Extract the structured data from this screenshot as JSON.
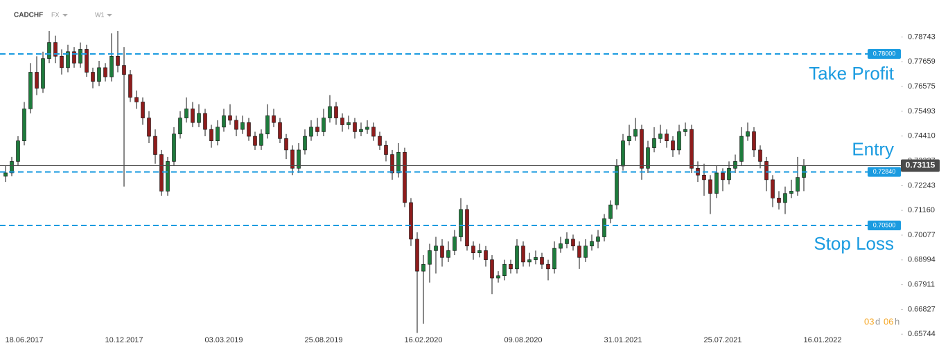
{
  "chart_data": {
    "type": "candlestick",
    "symbol": "CADCHF",
    "market": "FX",
    "timeframe": "W1",
    "up_color": "#1e7b3c",
    "down_color": "#8e1c1c",
    "ylim": [
      0.6554,
      0.8036
    ],
    "yticks": [
      0.78743,
      0.77659,
      0.76575,
      0.75493,
      {
        "value": 0.7441,
        "label": "0.74410"
      },
      0.73327,
      0.72243,
      {
        "value": 0.7116,
        "label": "0.71160"
      },
      0.70077,
      0.68994,
      0.67911,
      0.66827,
      0.65744
    ],
    "categories": [
      null,
      null,
      null,
      "18.06.2017",
      null,
      null,
      null,
      null,
      null,
      null,
      null,
      null,
      null,
      null,
      null,
      null,
      null,
      null,
      null,
      "10.12.2017",
      null,
      null,
      null,
      null,
      null,
      null,
      null,
      null,
      null,
      null,
      null,
      null,
      null,
      null,
      null,
      "03.03.2019",
      null,
      null,
      null,
      null,
      null,
      null,
      null,
      null,
      null,
      null,
      null,
      null,
      null,
      null,
      null,
      "25.08.2019",
      null,
      null,
      null,
      null,
      null,
      null,
      null,
      null,
      null,
      null,
      null,
      null,
      null,
      null,
      null,
      "16.02.2020",
      null,
      null,
      null,
      null,
      null,
      null,
      null,
      null,
      null,
      null,
      null,
      null,
      null,
      null,
      null,
      "09.08.2020",
      null,
      null,
      null,
      null,
      null,
      null,
      null,
      null,
      null,
      null,
      null,
      null,
      null,
      null,
      null,
      "31.01.2021",
      null,
      null,
      null,
      null,
      null,
      null,
      null,
      null,
      null,
      null,
      null,
      null,
      null,
      null,
      null,
      "25.07.2021",
      null,
      null,
      null,
      null,
      null,
      null,
      null,
      null,
      null,
      null,
      null,
      null,
      null,
      null,
      null,
      "16.01.2022"
    ],
    "ohlc": [
      [
        0.7265,
        0.731,
        0.724,
        0.728
      ],
      [
        0.728,
        0.735,
        0.7265,
        0.733
      ],
      [
        0.733,
        0.744,
        0.731,
        0.742
      ],
      [
        0.742,
        0.759,
        0.74,
        0.756
      ],
      [
        0.756,
        0.776,
        0.754,
        0.772
      ],
      [
        0.772,
        0.779,
        0.762,
        0.765
      ],
      [
        0.765,
        0.781,
        0.763,
        0.778
      ],
      [
        0.778,
        0.79,
        0.776,
        0.785
      ],
      [
        0.785,
        0.788,
        0.776,
        0.779
      ],
      [
        0.779,
        0.782,
        0.771,
        0.774
      ],
      [
        0.774,
        0.784,
        0.772,
        0.781
      ],
      [
        0.781,
        0.783,
        0.774,
        0.776
      ],
      [
        0.776,
        0.785,
        0.774,
        0.782
      ],
      [
        0.782,
        0.784,
        0.77,
        0.772
      ],
      [
        0.772,
        0.774,
        0.765,
        0.768
      ],
      [
        0.768,
        0.777,
        0.766,
        0.774
      ],
      [
        0.774,
        0.776,
        0.768,
        0.77
      ],
      [
        0.77,
        0.789,
        0.768,
        0.779
      ],
      [
        0.779,
        0.79,
        0.772,
        0.775
      ],
      [
        0.775,
        0.783,
        0.722,
        0.771
      ],
      [
        0.771,
        0.773,
        0.759,
        0.761
      ],
      [
        0.761,
        0.764,
        0.756,
        0.759
      ],
      [
        0.759,
        0.761,
        0.749,
        0.752
      ],
      [
        0.752,
        0.755,
        0.741,
        0.744
      ],
      [
        0.744,
        0.747,
        0.732,
        0.736
      ],
      [
        0.736,
        0.738,
        0.718,
        0.72
      ],
      [
        0.72,
        0.735,
        0.718,
        0.733
      ],
      [
        0.733,
        0.748,
        0.731,
        0.745
      ],
      [
        0.745,
        0.755,
        0.743,
        0.752
      ],
      [
        0.752,
        0.761,
        0.75,
        0.756
      ],
      [
        0.756,
        0.759,
        0.748,
        0.75
      ],
      [
        0.75,
        0.758,
        0.748,
        0.754
      ],
      [
        0.754,
        0.756,
        0.744,
        0.747
      ],
      [
        0.747,
        0.749,
        0.739,
        0.742
      ],
      [
        0.742,
        0.751,
        0.74,
        0.748
      ],
      [
        0.748,
        0.756,
        0.746,
        0.753
      ],
      [
        0.753,
        0.758,
        0.749,
        0.751
      ],
      [
        0.751,
        0.753,
        0.744,
        0.747
      ],
      [
        0.747,
        0.753,
        0.745,
        0.75
      ],
      [
        0.75,
        0.752,
        0.742,
        0.744
      ],
      [
        0.744,
        0.746,
        0.738,
        0.74
      ],
      [
        0.74,
        0.747,
        0.738,
        0.745
      ],
      [
        0.745,
        0.758,
        0.743,
        0.753
      ],
      [
        0.753,
        0.756,
        0.748,
        0.75
      ],
      [
        0.75,
        0.752,
        0.741,
        0.743
      ],
      [
        0.743,
        0.745,
        0.734,
        0.738
      ],
      [
        0.738,
        0.74,
        0.727,
        0.73
      ],
      [
        0.73,
        0.741,
        0.728,
        0.738
      ],
      [
        0.738,
        0.747,
        0.736,
        0.744
      ],
      [
        0.744,
        0.751,
        0.742,
        0.748
      ],
      [
        0.748,
        0.752,
        0.744,
        0.746
      ],
      [
        0.746,
        0.756,
        0.744,
        0.752
      ],
      [
        0.752,
        0.762,
        0.75,
        0.757
      ],
      [
        0.757,
        0.759,
        0.749,
        0.752
      ],
      [
        0.752,
        0.754,
        0.746,
        0.749
      ],
      [
        0.749,
        0.753,
        0.747,
        0.75
      ],
      [
        0.75,
        0.752,
        0.743,
        0.746
      ],
      [
        0.746,
        0.75,
        0.744,
        0.747
      ],
      [
        0.747,
        0.751,
        0.745,
        0.748
      ],
      [
        0.748,
        0.75,
        0.742,
        0.744
      ],
      [
        0.744,
        0.746,
        0.738,
        0.74
      ],
      [
        0.74,
        0.742,
        0.733,
        0.736
      ],
      [
        0.736,
        0.738,
        0.725,
        0.728
      ],
      [
        0.728,
        0.741,
        0.726,
        0.737
      ],
      [
        0.737,
        0.739,
        0.713,
        0.715
      ],
      [
        0.715,
        0.717,
        0.696,
        0.699
      ],
      [
        0.699,
        0.702,
        0.658,
        0.685
      ],
      [
        0.685,
        0.692,
        0.662,
        0.688
      ],
      [
        0.688,
        0.697,
        0.68,
        0.694
      ],
      [
        0.694,
        0.7,
        0.684,
        0.696
      ],
      [
        0.696,
        0.699,
        0.687,
        0.691
      ],
      [
        0.691,
        0.698,
        0.689,
        0.694
      ],
      [
        0.694,
        0.703,
        0.692,
        0.7
      ],
      [
        0.7,
        0.717,
        0.698,
        0.712
      ],
      [
        0.712,
        0.714,
        0.694,
        0.696
      ],
      [
        0.696,
        0.698,
        0.69,
        0.693
      ],
      [
        0.693,
        0.697,
        0.691,
        0.694
      ],
      [
        0.694,
        0.696,
        0.687,
        0.69
      ],
      [
        0.69,
        0.692,
        0.675,
        0.682
      ],
      [
        0.682,
        0.685,
        0.68,
        0.683
      ],
      [
        0.683,
        0.69,
        0.681,
        0.688
      ],
      [
        0.688,
        0.69,
        0.684,
        0.686
      ],
      [
        0.686,
        0.699,
        0.684,
        0.696
      ],
      [
        0.696,
        0.698,
        0.687,
        0.689
      ],
      [
        0.689,
        0.693,
        0.687,
        0.69
      ],
      [
        0.69,
        0.694,
        0.688,
        0.691
      ],
      [
        0.691,
        0.693,
        0.686,
        0.688
      ],
      [
        0.688,
        0.69,
        0.681,
        0.686
      ],
      [
        0.686,
        0.698,
        0.684,
        0.695
      ],
      [
        0.695,
        0.7,
        0.693,
        0.697
      ],
      [
        0.697,
        0.702,
        0.695,
        0.699
      ],
      [
        0.699,
        0.701,
        0.694,
        0.696
      ],
      [
        0.696,
        0.698,
        0.686,
        0.691
      ],
      [
        0.691,
        0.699,
        0.689,
        0.696
      ],
      [
        0.696,
        0.701,
        0.694,
        0.698
      ],
      [
        0.698,
        0.703,
        0.695,
        0.7
      ],
      [
        0.7,
        0.71,
        0.698,
        0.708
      ],
      [
        0.708,
        0.716,
        0.706,
        0.714
      ],
      [
        0.714,
        0.734,
        0.712,
        0.731
      ],
      [
        0.731,
        0.745,
        0.729,
        0.742
      ],
      [
        0.742,
        0.749,
        0.74,
        0.744
      ],
      [
        0.744,
        0.752,
        0.742,
        0.747
      ],
      [
        0.747,
        0.749,
        0.725,
        0.73
      ],
      [
        0.73,
        0.742,
        0.728,
        0.739
      ],
      [
        0.739,
        0.748,
        0.737,
        0.743
      ],
      [
        0.743,
        0.749,
        0.741,
        0.745
      ],
      [
        0.745,
        0.747,
        0.739,
        0.742
      ],
      [
        0.742,
        0.744,
        0.735,
        0.738
      ],
      [
        0.738,
        0.749,
        0.736,
        0.746
      ],
      [
        0.746,
        0.75,
        0.744,
        0.747
      ],
      [
        0.747,
        0.749,
        0.728,
        0.73
      ],
      [
        0.73,
        0.733,
        0.724,
        0.727
      ],
      [
        0.727,
        0.732,
        0.718,
        0.725
      ],
      [
        0.725,
        0.727,
        0.71,
        0.719
      ],
      [
        0.719,
        0.731,
        0.717,
        0.728
      ],
      [
        0.728,
        0.73,
        0.72,
        0.725
      ],
      [
        0.725,
        0.733,
        0.723,
        0.73
      ],
      [
        0.73,
        0.736,
        0.728,
        0.733
      ],
      [
        0.733,
        0.748,
        0.731,
        0.744
      ],
      [
        0.744,
        0.75,
        0.742,
        0.746
      ],
      [
        0.746,
        0.748,
        0.735,
        0.738
      ],
      [
        0.738,
        0.74,
        0.73,
        0.733
      ],
      [
        0.733,
        0.735,
        0.72,
        0.725
      ],
      [
        0.725,
        0.727,
        0.713,
        0.717
      ],
      [
        0.717,
        0.72,
        0.712,
        0.715
      ],
      [
        0.715,
        0.722,
        0.71,
        0.719
      ],
      [
        0.719,
        0.725,
        0.717,
        0.72
      ],
      [
        0.72,
        0.735,
        0.718,
        0.726
      ],
      [
        0.726,
        0.734,
        0.72,
        0.7312
      ],
      null,
      null,
      null
    ],
    "levels": [
      {
        "name": "Take Profit",
        "value": 0.78,
        "label": "0.78000",
        "color": "#1a9be0"
      },
      {
        "name": "Entry",
        "value": 0.7284,
        "label": "0.72840",
        "color": "#1a9be0"
      },
      {
        "name": "Stop Loss",
        "value": 0.705,
        "label": "0.70500",
        "color": "#1a9be0"
      }
    ],
    "current_price": {
      "value": 0.73115,
      "label": "0.73115",
      "color": "#4a4a4a"
    },
    "countdown": {
      "days": "03",
      "days_unit": "d",
      "hours": "06",
      "hours_unit": "h"
    }
  }
}
